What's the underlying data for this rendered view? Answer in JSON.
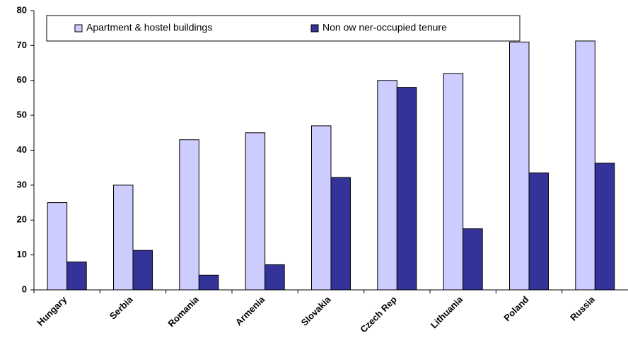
{
  "chart_data": {
    "type": "bar",
    "categories": [
      "Hungary",
      "Serbia",
      "Romania",
      "Armenia",
      "Slovakia",
      "Czech Rep",
      "Lithuania",
      "Poland",
      "Russia"
    ],
    "series": [
      {
        "name": "Apartment & hostel buildings",
        "color": "#ccccff",
        "values": [
          25,
          30,
          43,
          45,
          47,
          60,
          62,
          71,
          71.3
        ]
      },
      {
        "name": "Non ow ner-occupied tenure",
        "color": "#333399",
        "values": [
          8,
          11.3,
          4.2,
          7.2,
          32.2,
          58,
          17.5,
          33.5,
          36.3
        ]
      }
    ],
    "ylim": [
      0,
      80
    ],
    "yticks": [
      0,
      10,
      20,
      30,
      40,
      50,
      60,
      70,
      80
    ],
    "grid": false,
    "legend": "top"
  }
}
